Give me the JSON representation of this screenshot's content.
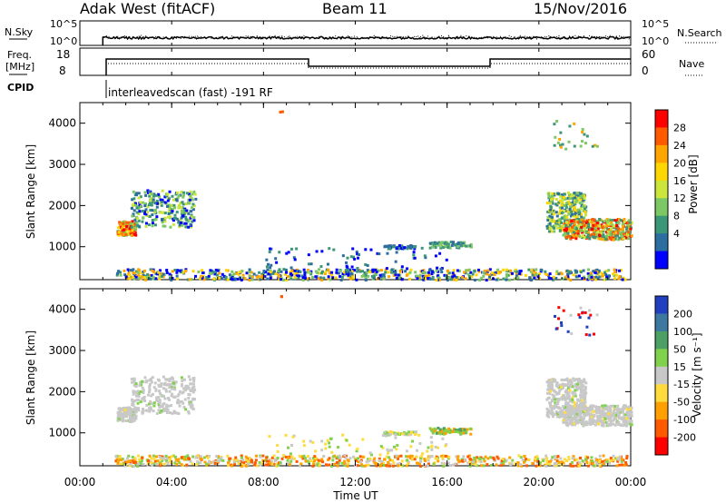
{
  "header": {
    "station": "Adak West (fitACF)",
    "beam": "Beam 11",
    "date": "15/Nov/2016"
  },
  "labels": {
    "nsky": "N.Sky",
    "freq_line1": "Freq.",
    "freq_line2": "[MHz]",
    "cpid": "CPID",
    "nsearch": "N.Search",
    "nave": "Nave",
    "cpid_value": "interleavedscan (fast) -191 RF",
    "nsky_ticks": [
      "10^5",
      "10^0"
    ],
    "nsearch_ticks": [
      "10^5",
      "10^0"
    ],
    "freq_ticks": [
      "18",
      "8"
    ],
    "nave_ticks": [
      "60",
      "0"
    ]
  },
  "chart_data": [
    {
      "type": "heatmap",
      "name": "power-panel",
      "ylabel": "Slant Range [km]",
      "yticks": [
        "4000",
        "3000",
        "2000",
        "1000"
      ],
      "ylim": [
        200,
        4500
      ],
      "xlim": [
        0,
        24
      ],
      "colorbar": {
        "label": "Power [dB]",
        "ticks": [
          "28",
          "24",
          "20",
          "16",
          "12",
          "8",
          "4"
        ],
        "colors": [
          "#ff0000",
          "#ff5a00",
          "#ffa500",
          "#ffd700",
          "#cce63c",
          "#7dc864",
          "#3c9678",
          "#2d6ea0",
          "#0000ff"
        ]
      }
    },
    {
      "type": "heatmap",
      "name": "velocity-panel",
      "ylabel": "Slant Range [km]",
      "yticks": [
        "4000",
        "3000",
        "2000",
        "1000"
      ],
      "ylim": [
        200,
        4500
      ],
      "xlim": [
        0,
        24
      ],
      "xlabel": "Time UT",
      "xticks": [
        "00:00",
        "04:00",
        "08:00",
        "12:00",
        "16:00",
        "20:00",
        "00:00"
      ],
      "colorbar": {
        "label": "Velocity [m s⁻¹]",
        "ticks": [
          "200",
          "100",
          "50",
          "15",
          "-15",
          "-50",
          "-100",
          "-200"
        ],
        "colors": [
          "#2040c0",
          "#3c78a0",
          "#4ca064",
          "#80d24c",
          "#c8c8c8",
          "#ffdc3c",
          "#ffa000",
          "#ff5a00",
          "#ff0000"
        ]
      }
    }
  ],
  "time_axis": {
    "xlabel": "Time UT",
    "ticks": [
      "00:00",
      "04:00",
      "08:00",
      "12:00",
      "16:00",
      "20:00",
      "00:00"
    ]
  }
}
